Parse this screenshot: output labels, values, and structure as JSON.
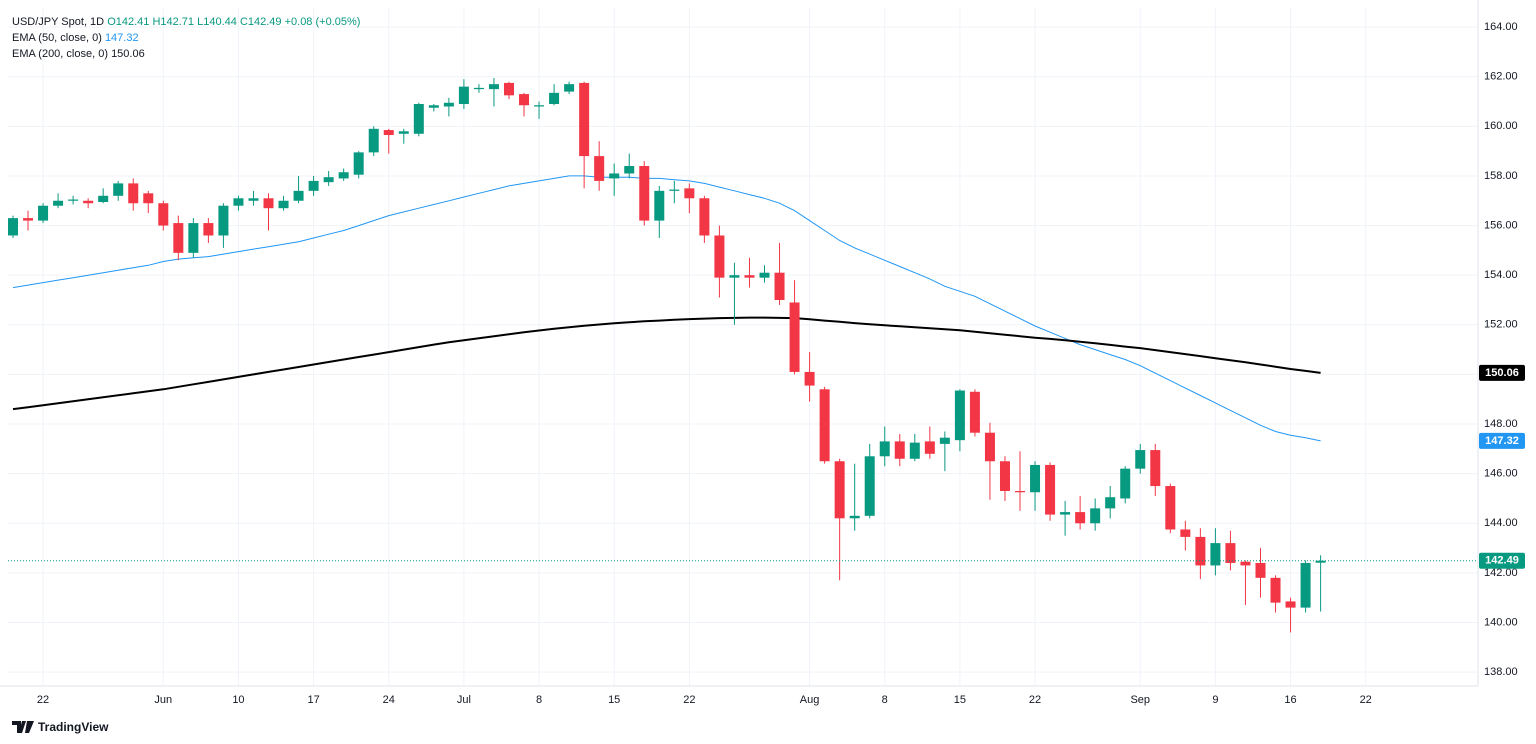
{
  "branding": "TradingView",
  "chart_data": {
    "type": "candlestick",
    "title": "USD/JPY Spot, 1D",
    "ohlc_labels": {
      "open": "O142.41",
      "high": "H142.71",
      "low": "L140.44",
      "close": "C142.49",
      "change": "+0.08 (+0.05%)"
    },
    "categories": [
      null,
      null,
      "22",
      null,
      null,
      null,
      null,
      null,
      null,
      null,
      "Jun",
      null,
      null,
      null,
      null,
      "10",
      null,
      null,
      null,
      null,
      "17",
      null,
      null,
      null,
      null,
      "24",
      null,
      null,
      null,
      null,
      "Jul",
      null,
      null,
      null,
      null,
      "8",
      null,
      null,
      null,
      null,
      "15",
      null,
      null,
      null,
      null,
      "22",
      null,
      null,
      null,
      null,
      null,
      null,
      null,
      "Aug",
      null,
      null,
      null,
      null,
      "8",
      null,
      null,
      null,
      null,
      "15",
      null,
      null,
      null,
      null,
      "22",
      null,
      null,
      null,
      null,
      null,
      null,
      "Sep",
      null,
      null,
      null,
      null,
      "9",
      null,
      null,
      null,
      null,
      "16",
      null,
      null,
      null,
      null,
      "22"
    ],
    "open": [
      155.6,
      156.3,
      156.2,
      156.8,
      157.0,
      157.0,
      156.95,
      157.2,
      157.7,
      157.3,
      156.9,
      156.1,
      154.9,
      156.1,
      155.6,
      156.8,
      157.0,
      157.1,
      156.7,
      157.0,
      157.4,
      157.75,
      157.9,
      158.05,
      158.95,
      159.85,
      159.7,
      159.7,
      160.75,
      160.8,
      160.9,
      161.5,
      161.5,
      161.75,
      161.3,
      160.8,
      160.9,
      161.4,
      161.75,
      158.8,
      157.9,
      158.1,
      158.4,
      156.2,
      157.4,
      157.5,
      157.1,
      155.6,
      153.9,
      154.0,
      153.9,
      154.1,
      152.9,
      150.1,
      149.4,
      146.5,
      144.2,
      144.3,
      146.7,
      147.3,
      146.6,
      147.3,
      147.2,
      147.35,
      149.3,
      147.65,
      146.5,
      145.3,
      145.25,
      146.35,
      144.35,
      144.45,
      144.0,
      144.6,
      145.0,
      146.2,
      146.95,
      145.5,
      143.75,
      143.45,
      142.3,
      143.2,
      142.45,
      142.4,
      141.8,
      140.85,
      140.6,
      142.41,
      null,
      null,
      null
    ],
    "high": [
      156.4,
      156.6,
      156.9,
      157.3,
      157.2,
      157.1,
      157.5,
      157.8,
      157.9,
      157.4,
      157.0,
      156.4,
      156.3,
      156.3,
      156.9,
      157.2,
      157.4,
      157.3,
      157.2,
      158.0,
      158.0,
      158.2,
      158.3,
      159.0,
      160.0,
      159.9,
      159.9,
      160.95,
      160.9,
      161.15,
      161.9,
      161.7,
      161.95,
      161.8,
      161.35,
      161.0,
      161.7,
      161.8,
      161.8,
      159.4,
      158.5,
      158.9,
      158.6,
      157.6,
      157.8,
      157.7,
      157.2,
      156.0,
      154.5,
      154.7,
      154.4,
      155.3,
      153.8,
      150.9,
      149.5,
      146.6,
      146.4,
      147.2,
      147.9,
      147.6,
      147.6,
      147.9,
      147.7,
      149.4,
      149.4,
      148.05,
      146.7,
      146.9,
      146.5,
      146.45,
      144.9,
      145.1,
      145.0,
      145.5,
      146.3,
      147.2,
      147.2,
      145.6,
      144.1,
      143.8,
      143.8,
      143.7,
      142.5,
      143.0,
      141.9,
      141.0,
      142.5,
      142.71,
      null,
      null,
      null
    ],
    "low": [
      155.5,
      155.8,
      156.1,
      156.7,
      156.85,
      156.7,
      156.9,
      157.0,
      156.6,
      156.5,
      155.8,
      154.6,
      154.7,
      155.3,
      155.1,
      156.6,
      156.8,
      155.8,
      156.6,
      156.9,
      157.2,
      157.6,
      157.8,
      157.9,
      158.8,
      158.9,
      159.3,
      159.6,
      160.6,
      160.4,
      160.7,
      161.35,
      160.8,
      161.1,
      160.4,
      160.3,
      160.85,
      161.3,
      157.5,
      157.4,
      157.2,
      157.9,
      156.0,
      155.5,
      156.9,
      156.5,
      155.3,
      153.1,
      152.0,
      153.5,
      153.7,
      152.8,
      150.0,
      148.9,
      146.4,
      141.7,
      143.7,
      144.2,
      146.3,
      146.3,
      146.5,
      146.6,
      146.1,
      146.9,
      147.5,
      144.95,
      144.9,
      144.5,
      144.5,
      144.1,
      143.5,
      143.75,
      143.7,
      144.2,
      144.8,
      146.0,
      145.1,
      143.6,
      142.9,
      141.75,
      141.9,
      142.1,
      140.7,
      141.0,
      140.4,
      139.6,
      140.4,
      140.44,
      null,
      null,
      null
    ],
    "close": [
      156.3,
      156.2,
      156.8,
      157.0,
      157.05,
      156.9,
      157.2,
      157.7,
      156.9,
      156.9,
      156.0,
      154.9,
      156.1,
      155.6,
      156.8,
      157.1,
      157.1,
      156.7,
      157.0,
      157.4,
      157.8,
      157.95,
      158.15,
      158.95,
      159.9,
      159.65,
      159.8,
      160.9,
      160.85,
      160.95,
      161.6,
      161.55,
      161.7,
      161.25,
      160.85,
      160.85,
      161.35,
      161.7,
      158.8,
      157.8,
      158.1,
      158.4,
      156.2,
      157.4,
      157.45,
      157.1,
      155.6,
      153.9,
      154.0,
      153.9,
      154.1,
      153.0,
      150.1,
      149.55,
      146.5,
      144.2,
      144.3,
      146.7,
      147.3,
      146.6,
      147.25,
      146.8,
      147.45,
      149.35,
      147.65,
      146.5,
      145.3,
      145.25,
      146.35,
      144.35,
      144.45,
      144.0,
      144.6,
      145.05,
      146.2,
      146.95,
      145.5,
      143.75,
      143.45,
      142.3,
      143.2,
      142.4,
      142.3,
      141.8,
      140.8,
      140.6,
      142.4,
      142.49,
      null,
      null,
      null
    ],
    "up_color": "#089981",
    "down_color": "#f23645",
    "last_price_label": "142.49",
    "series": [
      {
        "name": "EMA (50, close, 0)",
        "color": "#2196f3",
        "value_label": "147.32",
        "values": [
          153.5,
          153.6,
          153.7,
          153.8,
          153.9,
          154.0,
          154.1,
          154.2,
          154.3,
          154.4,
          154.55,
          154.65,
          154.7,
          154.75,
          154.85,
          154.95,
          155.05,
          155.15,
          155.25,
          155.35,
          155.5,
          155.65,
          155.8,
          156.0,
          156.2,
          156.4,
          156.55,
          156.7,
          156.85,
          157.0,
          157.15,
          157.3,
          157.45,
          157.6,
          157.7,
          157.8,
          157.9,
          158.0,
          158.0,
          157.95,
          157.95,
          157.95,
          157.9,
          157.9,
          157.85,
          157.8,
          157.7,
          157.55,
          157.4,
          157.25,
          157.1,
          156.9,
          156.6,
          156.2,
          155.8,
          155.4,
          155.1,
          154.85,
          154.6,
          154.35,
          154.1,
          153.85,
          153.55,
          153.35,
          153.15,
          152.85,
          152.55,
          152.25,
          151.95,
          151.7,
          151.45,
          151.2,
          151.0,
          150.8,
          150.6,
          150.35,
          150.05,
          149.75,
          149.45,
          149.15,
          148.85,
          148.55,
          148.25,
          147.95,
          147.7,
          147.55,
          147.45,
          147.32,
          null,
          null,
          null
        ]
      },
      {
        "name": "EMA (200, close, 0)",
        "color": "#000000",
        "value_label": "150.06",
        "values": [
          148.6,
          148.68,
          148.76,
          148.84,
          148.92,
          149.0,
          149.08,
          149.16,
          149.24,
          149.32,
          149.4,
          149.5,
          149.6,
          149.7,
          149.8,
          149.9,
          150.0,
          150.1,
          150.2,
          150.3,
          150.4,
          150.5,
          150.6,
          150.7,
          150.8,
          150.9,
          151.0,
          151.1,
          151.2,
          151.3,
          151.38,
          151.46,
          151.54,
          151.62,
          151.7,
          151.77,
          151.84,
          151.9,
          151.96,
          152.01,
          152.06,
          152.1,
          152.14,
          152.17,
          152.2,
          152.23,
          152.25,
          152.27,
          152.28,
          152.29,
          152.29,
          152.28,
          152.27,
          152.22,
          152.17,
          152.12,
          152.07,
          152.02,
          151.98,
          151.94,
          151.9,
          151.86,
          151.82,
          151.78,
          151.72,
          151.66,
          151.6,
          151.54,
          151.48,
          151.43,
          151.38,
          151.32,
          151.26,
          151.19,
          151.12,
          151.06,
          150.98,
          150.9,
          150.82,
          150.74,
          150.65,
          150.57,
          150.49,
          150.4,
          150.31,
          150.22,
          150.14,
          150.06,
          null,
          null,
          null
        ]
      }
    ],
    "ylim": [
      137.44,
      164.77
    ],
    "yticks": [
      {
        "value": 138,
        "label": "138.00"
      },
      {
        "value": 140,
        "label": "140.00"
      },
      {
        "value": 142,
        "label": "142.00"
      },
      {
        "value": 144,
        "label": "144.00"
      },
      {
        "value": 146,
        "label": "146.00"
      },
      {
        "value": 148,
        "label": "148.00"
      },
      {
        "value": 150,
        "label": "150.00"
      },
      {
        "value": 152,
        "label": "152.00"
      },
      {
        "value": 154,
        "label": "154.00"
      },
      {
        "value": 156,
        "label": "156.00"
      },
      {
        "value": 158,
        "label": "158.00"
      },
      {
        "value": 160,
        "label": "160.00"
      },
      {
        "value": 162,
        "label": "162.00"
      },
      {
        "value": 164,
        "label": "164.00"
      }
    ],
    "grid": true
  }
}
